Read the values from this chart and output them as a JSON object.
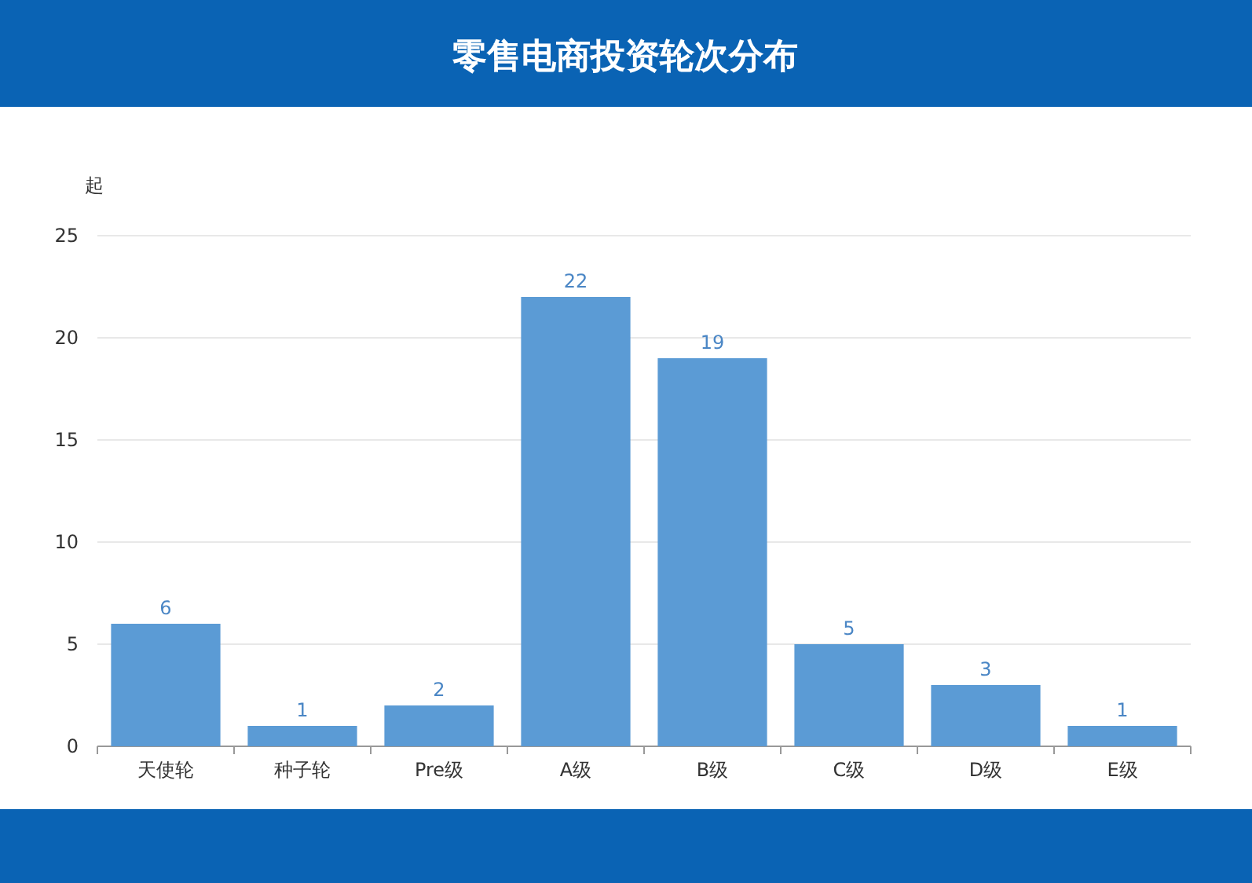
{
  "chart_data": {
    "type": "bar",
    "title": "零售电商投资轮次分布",
    "ylabel": "起",
    "categories": [
      "天使轮",
      "种子轮",
      "Pre级",
      "A级",
      "B级",
      "C级",
      "D级",
      "E级"
    ],
    "values": [
      6,
      1,
      2,
      22,
      19,
      5,
      3,
      1
    ],
    "color": "#5b9bd5",
    "ylim": [
      0,
      25
    ],
    "yticks": [
      0,
      5,
      10,
      15,
      20,
      25
    ],
    "grid": "y",
    "data_labels": true
  }
}
